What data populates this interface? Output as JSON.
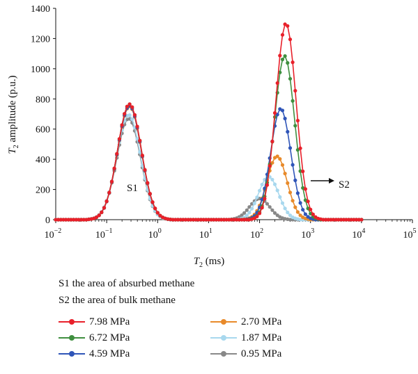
{
  "chart_data": {
    "type": "line",
    "xlabel": "T2 (ms)",
    "xlabel_main": "T",
    "xlabel_sub": "2",
    "xlabel_rest": " (ms)",
    "ylabel": "T2 amplitude (p.u.)",
    "ylabel_main": "T",
    "ylabel_sub": "2",
    "ylabel_rest": " amplitude (p.u.)",
    "x_scale": "log",
    "xlim": [
      0.01,
      100000
    ],
    "ylim": [
      0,
      1400
    ],
    "grid": false,
    "y_ticks": [
      "0",
      "200",
      "400",
      "600",
      "800",
      "1000",
      "1200",
      "1400"
    ],
    "x_ticks": [
      {
        "base": "10",
        "exp": "−2"
      },
      {
        "base": "10",
        "exp": "−1"
      },
      {
        "base": "10",
        "exp": "0"
      },
      {
        "base": "10",
        "exp": "1"
      },
      {
        "base": "10",
        "exp": "2"
      },
      {
        "base": "10",
        "exp": "3"
      },
      {
        "base": "10",
        "exp": "4"
      },
      {
        "base": "10",
        "exp": "5"
      }
    ],
    "annotations": {
      "s1": "S1",
      "s2": "S2"
    },
    "series": [
      {
        "name": "7.98 MPa",
        "color": "#e8202a",
        "peak1": 765,
        "peak1_center": 0.28,
        "peak2": 1300,
        "peak2_center": 330
      },
      {
        "name": "6.72 MPa",
        "color": "#3f8f3f",
        "peak1": 765,
        "peak1_center": 0.28,
        "peak2": 1085,
        "peak2_center": 310
      },
      {
        "name": "4.59 MPa",
        "color": "#2f55b8",
        "peak1": 755,
        "peak1_center": 0.28,
        "peak2": 735,
        "peak2_center": 260
      },
      {
        "name": "2.70 MPa",
        "color": "#e88a2a",
        "peak1": 750,
        "peak1_center": 0.28,
        "peak2": 420,
        "peak2_center": 220
      },
      {
        "name": "1.87 MPa",
        "color": "#a8d8ee",
        "peak1": 695,
        "peak1_center": 0.27,
        "peak2": 285,
        "peak2_center": 150
      },
      {
        "name": "0.95 MPa",
        "color": "#888888",
        "peak1": 670,
        "peak1_center": 0.27,
        "peak2": 140,
        "peak2_center": 100
      }
    ]
  },
  "notes": {
    "line1": "S1 the area of absurbed methane",
    "line2": "S2 the area of bulk methane"
  }
}
